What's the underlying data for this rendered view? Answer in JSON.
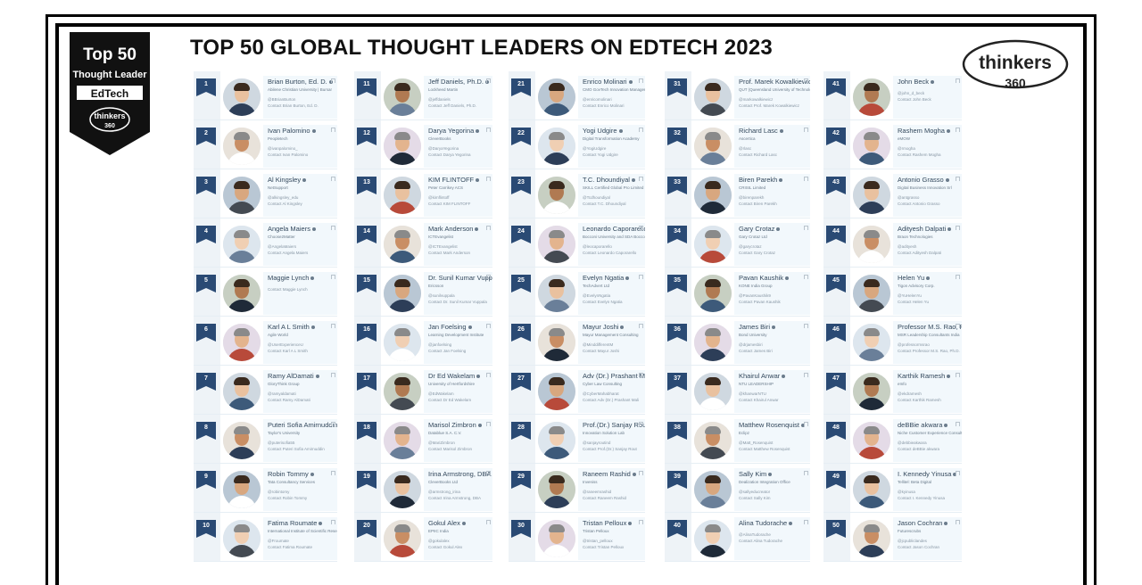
{
  "title": "TOP 50 GLOBAL THOUGHT LEADERS ON EDTECH 2023",
  "badge": {
    "top": "Top 50",
    "subtitle": "Thought Leader",
    "category": "EdTech",
    "brand": "thinkers",
    "brand_num": "360"
  },
  "logo": {
    "brand": "thinkers",
    "brand_num": "360"
  },
  "colors": {
    "rank_badge": "#2a4a74",
    "frame": "#000000",
    "row_bg": "#f2f8fc",
    "strip_bg": "#eef3f7"
  },
  "columns": [
    [
      {
        "rank": "1",
        "name": "Brian Burton, Ed. D.",
        "org": "Abilene Christian University | Bursar",
        "handle": "@BBrianBurton",
        "contact": "Contact Brian Burton, Ed. D."
      },
      {
        "rank": "2",
        "name": "Ivan Palomino",
        "org": "Peopletech",
        "handle": "@ivanpalomino_",
        "contact": "Contact Ivan Palomino"
      },
      {
        "rank": "3",
        "name": "Al Kingsley",
        "org": "NetSupport",
        "handle": "@alkingsley_edu",
        "contact": "Contact Al Kingsley"
      },
      {
        "rank": "4",
        "name": "Angela Maiers",
        "org": "Choose2Matter",
        "handle": "@AngelaMaiers",
        "contact": "Contact Angela Maiers"
      },
      {
        "rank": "5",
        "name": "Maggie Lynch",
        "org": "",
        "handle": "",
        "contact": "Contact Maggie Lynch"
      },
      {
        "rank": "6",
        "name": "Karl A L Smith",
        "org": "Agile World",
        "handle": "@UserExperienceU",
        "contact": "Contact Karl A L Smith"
      },
      {
        "rank": "7",
        "name": "Ramy AlDamati",
        "org": "GloryThink Group",
        "handle": "@ramyaldamati",
        "contact": "Contact Ramy AlDamati"
      },
      {
        "rank": "8",
        "name": "Puteri Sofia Amirnuddin",
        "org": "Taylor's University",
        "handle": "@puterisofia55",
        "contact": "Contact Puteri Sofia Amirnuddin"
      },
      {
        "rank": "9",
        "name": "Robin Tommy",
        "org": "Tata Consultancy Services",
        "handle": "@robintomy",
        "contact": "Contact Robin Tommy"
      },
      {
        "rank": "10",
        "name": "Fatima Roumate",
        "org": "International Institute of Scientific Research",
        "handle": "@Froumate",
        "contact": "Contact Fatima Roumate"
      }
    ],
    [
      {
        "rank": "11",
        "name": "Jeff Daniels, Ph.D.",
        "org": "Lockheed Martin",
        "handle": "@jeffdaniels",
        "contact": "Contact Jeff Daniels, Ph.D."
      },
      {
        "rank": "12",
        "name": "Darya Yegorina",
        "org": "CleverBooks",
        "handle": "@DaryaYegorina",
        "contact": "Contact Darya Yegorina"
      },
      {
        "rank": "13",
        "name": "KIM FLINTOFF",
        "org": "Peter Carrikey ACS",
        "handle": "@kimflintoff",
        "contact": "Contact KIM FLINTOFF"
      },
      {
        "rank": "14",
        "name": "Mark Anderson",
        "org": "ICTEvangelist",
        "handle": "@ICTEvangelist",
        "contact": "Contact Mark Anderson"
      },
      {
        "rank": "15",
        "name": "Dr. Sunil Kumar Vuppala",
        "org": "Ericsson",
        "handle": "@sunilvuppala",
        "contact": "Contact Dr. Sunil Kumar Vuppala"
      },
      {
        "rank": "16",
        "name": "Jan Foelsing",
        "org": "Learning Development Institute",
        "handle": "@janfoelsing",
        "contact": "Contact Jan Foelsing"
      },
      {
        "rank": "17",
        "name": "Dr Ed Wakelam",
        "org": "University of Hertfordshire",
        "handle": "@EdWakelam",
        "contact": "Contact Dr Ed Wakelam"
      },
      {
        "rank": "18",
        "name": "Marisol Zimbron",
        "org": "Datablue S.A. C.V.",
        "handle": "@MariZimbron",
        "contact": "Contact Marisol Zimbron"
      },
      {
        "rank": "19",
        "name": "Irina Armstrong, DBA",
        "org": "CleverBooks Ltd",
        "handle": "@armstrong_irina",
        "contact": "Contact Irina Armstrong, DBA"
      },
      {
        "rank": "20",
        "name": "Gokul Alex",
        "org": "EPIIC India",
        "handle": "@gokulalex",
        "contact": "Contact Gokul Alex"
      }
    ],
    [
      {
        "rank": "21",
        "name": "Enrico Molinari",
        "org": "CMO GovTech Innovation Manager",
        "handle": "@enricomolinari",
        "contact": "Contact Enrico Molinari"
      },
      {
        "rank": "22",
        "name": "Yogi Udgire",
        "org": "Digital Transformation Academy",
        "handle": "@YogiUdgire",
        "contact": "Contact Yogi Udgire"
      },
      {
        "rank": "23",
        "name": "T.C. Dhoundiyal",
        "org": "SKILL Certified Global Pro Limited",
        "handle": "@Tcdhoundiyal",
        "contact": "Contact T.C. Dhoundiyal"
      },
      {
        "rank": "24",
        "name": "Leonardo Caporarello",
        "org": "Bocconi University and SDA Bocconi",
        "handle": "@leocaporarello",
        "contact": "Contact Leonardo Caporarello"
      },
      {
        "rank": "25",
        "name": "Evelyn Ngatia",
        "org": "TechAdvert Ltd",
        "handle": "@EvelynNgatia",
        "contact": "Contact Evelyn Ngatia"
      },
      {
        "rank": "26",
        "name": "Mayur Joshi",
        "org": "Mayur Management Consulting",
        "handle": "@MinddifferentM",
        "contact": "Contact Mayur Joshi"
      },
      {
        "rank": "27",
        "name": "Adv (Dr.) Prashant Mali",
        "org": "Cyber Law Consulting",
        "handle": "@CyberMahabharat",
        "contact": "Contact Adv (Dr.) Prashant Mali"
      },
      {
        "rank": "28",
        "name": "Prof.(Dr.) Sanjay Rout",
        "org": "Innovation Solution Lab",
        "handle": "@sanjayroutind",
        "contact": "Contact Prof.(Dr.) Sanjay Rout"
      },
      {
        "rank": "29",
        "name": "Raneem Rashid",
        "org": "Inveniss",
        "handle": "@raneemrashid",
        "contact": "Contact Raneem Rashid"
      },
      {
        "rank": "30",
        "name": "Tristan Pelloux",
        "org": "Tristan Pelloux",
        "handle": "@tristan_pelloux",
        "contact": "Contact Tristan Pelloux"
      }
    ],
    [
      {
        "rank": "31",
        "name": "Prof. Marek Kowalkiewicz",
        "org": "QUT (Queensland University of Technology)",
        "handle": "@markowalkiewicz",
        "contact": "Contact Prof. Marek Kowalkiewicz"
      },
      {
        "rank": "32",
        "name": "Richard Lasc",
        "org": "Ascertica",
        "handle": "@rlasc",
        "contact": "Contact Richard Lasc"
      },
      {
        "rank": "33",
        "name": "Biren Parekh",
        "org": "CRISIL Limited",
        "handle": "@birenparekh",
        "contact": "Contact Biren Parekh"
      },
      {
        "rank": "34",
        "name": "Gary Crotaz",
        "org": "Gary Crotaz Ltd",
        "handle": "@garycrotaz",
        "contact": "Contact Gary Crotaz"
      },
      {
        "rank": "35",
        "name": "Pavan Kaushik",
        "org": "KONE India Group",
        "handle": "@PavanKaushik9",
        "contact": "Contact Pavan Kaushik"
      },
      {
        "rank": "36",
        "name": "James Biri",
        "org": "Bond University",
        "handle": "@drjamesbiri",
        "contact": "Contact James Biri"
      },
      {
        "rank": "37",
        "name": "Khairul Anwar",
        "org": "NTU LEADERSHIP",
        "handle": "@khanwarNTU",
        "contact": "Contact Khairul Anwar"
      },
      {
        "rank": "38",
        "name": "Matthew Rosenquist",
        "org": "Eclipz",
        "handle": "@Matt_Rosenquist",
        "contact": "Contact Matthew Rosenquist"
      },
      {
        "rank": "39",
        "name": "Sally Kim",
        "org": "Dealization Integration Office",
        "handle": "@sallyeducreator",
        "contact": "Contact Sally Kim"
      },
      {
        "rank": "40",
        "name": "Alina Tudorache",
        "org": "",
        "handle": "@AlinaTudorache",
        "contact": "Contact Alina Tudorache"
      }
    ],
    [
      {
        "rank": "41",
        "name": "John Beck",
        "org": "",
        "handle": "@john_d_beck",
        "contact": "Contact John Beck"
      },
      {
        "rank": "42",
        "name": "Rashem Mogha",
        "org": "eMOW",
        "handle": "@rmogha",
        "contact": "Contact Rashem Mogha"
      },
      {
        "rank": "43",
        "name": "Antonio Grasso",
        "org": "Digital Business Innovation Srl",
        "handle": "@antgrasso",
        "contact": "Contact Antonio Grasso"
      },
      {
        "rank": "44",
        "name": "Adityesh Dalpati",
        "org": "Braon Technologies",
        "handle": "@adityesh",
        "contact": "Contact Adityesh Dalpati"
      },
      {
        "rank": "45",
        "name": "Helen Yu",
        "org": "Tigon Advisory Corp.",
        "handle": "@YuHelenYu",
        "contact": "Contact Helen Yu"
      },
      {
        "rank": "46",
        "name": "Professor M.S. Rao, Ph.D.",
        "org": "MSR Leadership Consultants India",
        "handle": "@professormsrao",
        "contact": "Contact Professor M.S. Rao, Ph.D."
      },
      {
        "rank": "47",
        "name": "Karthik Ramesh",
        "org": "eInfo",
        "handle": "@ekdramesh",
        "contact": "Contact Karthik Ramesh"
      },
      {
        "rank": "48",
        "name": "deBBie akwara",
        "org": "Niche Customer Experience Consultancy",
        "handle": "@debbieakwara",
        "contact": "Contact deBBie akwara"
      },
      {
        "rank": "49",
        "name": "I. Kennedy Yinusa",
        "org": "Tellitel: Beta Digital",
        "handle": "@kyinusa",
        "contact": "Contact I. Kennedy Yinusa"
      },
      {
        "rank": "50",
        "name": "Jason Cochran",
        "org": "Futurescrubs",
        "handle": "@jcpubliclandes",
        "contact": "Contact Jason Cochran"
      }
    ]
  ]
}
